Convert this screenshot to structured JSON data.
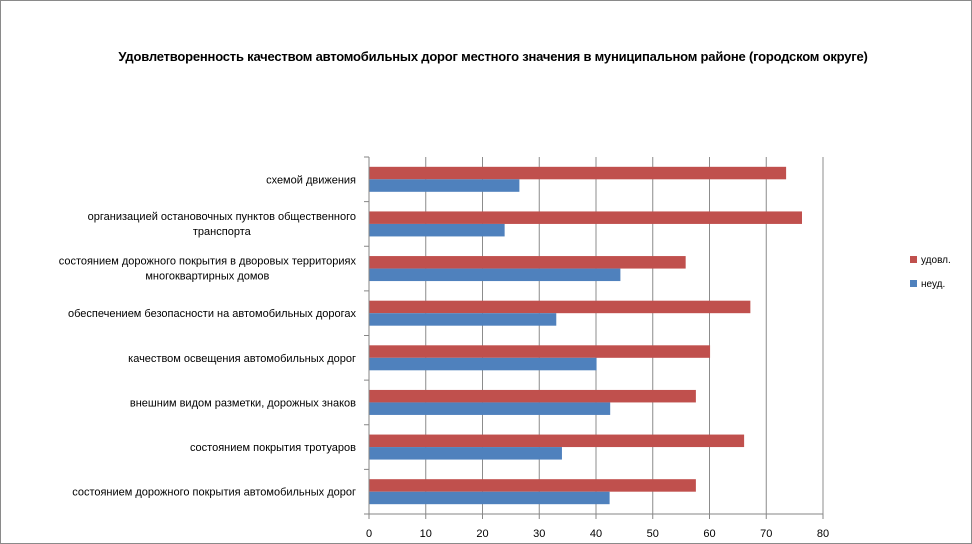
{
  "chart_data": {
    "type": "bar",
    "orientation": "horizontal",
    "title": "Удовлетворенность качеством автомобильных дорог местного значения в муниципальном районе (городском округе)",
    "categories": [
      [
        "схемой движения"
      ],
      [
        "организацией остановочных пунктов общественного",
        "транспорта"
      ],
      [
        "состоянием дорожного покрытия в дворовых территориях",
        "многоквартирных домов"
      ],
      [
        "обеспечением  безопасности на автомобильных дорогах"
      ],
      [
        "качеством освещения  автомобильных дорог"
      ],
      [
        "внешним  видом разметки, дорожных знаков"
      ],
      [
        "состоянием  покрытия тротуаров"
      ],
      [
        "состоянием дорожного покрытия автомобильных дорог"
      ]
    ],
    "series": [
      {
        "name": "удовл.",
        "color": "#c0504d",
        "values": [
          73.5,
          76.3,
          55.8,
          67.2,
          60.1,
          57.6,
          66.1,
          57.6
        ]
      },
      {
        "name": "неуд.",
        "color": "#4f81bd",
        "values": [
          26.5,
          23.9,
          44.3,
          33.0,
          40.1,
          42.5,
          34.0,
          42.4
        ]
      }
    ],
    "xlim": [
      0,
      80
    ],
    "xticks": [
      0,
      10,
      20,
      30,
      40,
      50,
      60,
      70,
      80
    ],
    "grid": "vertical",
    "legend_position": "right"
  }
}
